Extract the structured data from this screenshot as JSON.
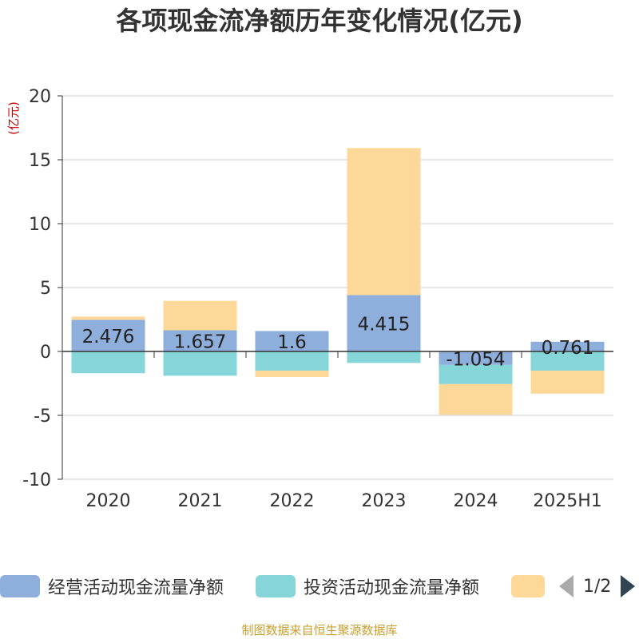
{
  "chart_data": {
    "type": "bar",
    "stacked": true,
    "title": "各项现金流净额历年变化情况(亿元)",
    "ylabel": "(亿元)",
    "ylim": [
      -10,
      20
    ],
    "yticks": [
      -10,
      -5,
      0,
      5,
      10,
      15,
      20
    ],
    "grid": true,
    "categories": [
      "2020",
      "2021",
      "2022",
      "2023",
      "2024",
      "2025H1"
    ],
    "series": [
      {
        "name": "经营活动现金流量净额",
        "color": "#8eaedb",
        "values": [
          2.476,
          1.657,
          1.6,
          4.415,
          -1.054,
          0.761
        ],
        "show_labels": true
      },
      {
        "name": "投资活动现金流量净额",
        "color": "#86d5d8",
        "values": [
          -1.7,
          -1.9,
          -1.5,
          -0.9,
          -1.5,
          -1.5
        ],
        "show_labels": false
      },
      {
        "name": "",
        "color": "#fdd898",
        "values": [
          0.25,
          2.3,
          -0.5,
          11.5,
          -2.4,
          -1.8
        ],
        "show_labels": false
      }
    ],
    "legend": {
      "position": "bottom",
      "page": "1/2"
    }
  },
  "source": "制图数据来自恒生聚源数据库"
}
